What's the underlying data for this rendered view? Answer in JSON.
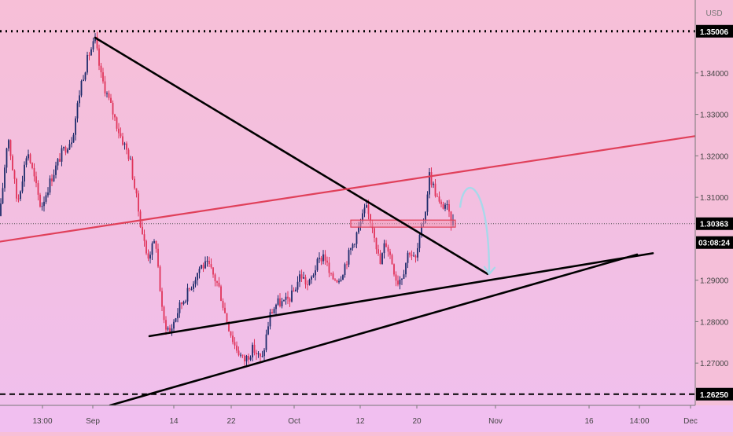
{
  "chart_data": {
    "type": "candlestick",
    "instrument_note": "",
    "currency": "USD",
    "y_range": [
      1.2598,
      1.3576
    ],
    "y_ticks": [
      {
        "value": 1.34,
        "label": "1.34000"
      },
      {
        "value": 1.33,
        "label": "1.33000"
      },
      {
        "value": 1.32,
        "label": "1.32000"
      },
      {
        "value": 1.31,
        "label": "1.31000"
      },
      {
        "value": 1.29,
        "label": "1.29000"
      },
      {
        "value": 1.28,
        "label": "1.28000"
      },
      {
        "value": 1.27,
        "label": "1.27000"
      }
    ],
    "x_ticks": [
      {
        "label": "13:00",
        "bar": 0
      },
      {
        "label": "Sep",
        "bar": 1
      },
      {
        "label": "14",
        "bar": 2
      },
      {
        "label": "22",
        "bar": 3
      },
      {
        "label": "Oct",
        "bar": 4
      },
      {
        "label": "12",
        "bar": 5
      },
      {
        "label": "20",
        "bar": 6
      },
      {
        "label": "Nov",
        "bar": 7
      },
      {
        "label": "16",
        "bar": 8
      },
      {
        "label": "14:00",
        "bar": 9
      },
      {
        "label": "Dec",
        "bar": 10
      }
    ],
    "x_tick_positions": [
      54,
      118,
      221,
      294,
      374,
      458,
      530,
      630,
      749,
      813,
      878
    ],
    "price_labels": {
      "high_line": {
        "value": 1.35006,
        "label": "1.35006"
      },
      "low_line": {
        "value": 1.2625,
        "label": "1.26250"
      },
      "current": {
        "value": 1.30363,
        "label": "1.30363"
      },
      "countdown": "03:08:24"
    },
    "anchors": [
      [
        0,
        1.3055
      ],
      [
        10,
        1.3255
      ],
      [
        22,
        1.3085
      ],
      [
        35,
        1.3215
      ],
      [
        52,
        1.3075
      ],
      [
        65,
        1.3145
      ],
      [
        78,
        1.3205
      ],
      [
        92,
        1.3245
      ],
      [
        103,
        1.3375
      ],
      [
        113,
        1.3445
      ],
      [
        121,
        1.3478
      ],
      [
        128,
        1.3395
      ],
      [
        140,
        1.3325
      ],
      [
        152,
        1.3255
      ],
      [
        165,
        1.3195
      ],
      [
        178,
        1.3045
      ],
      [
        187,
        1.2955
      ],
      [
        198,
        1.2995
      ],
      [
        207,
        1.2805
      ],
      [
        216,
        1.2775
      ],
      [
        228,
        1.2835
      ],
      [
        240,
        1.2875
      ],
      [
        255,
        1.2935
      ],
      [
        265,
        1.2935
      ],
      [
        278,
        1.2885
      ],
      [
        288,
        1.2805
      ],
      [
        298,
        1.2745
      ],
      [
        310,
        1.2705
      ],
      [
        322,
        1.2735
      ],
      [
        333,
        1.2705
      ],
      [
        343,
        1.2815
      ],
      [
        352,
        1.2845
      ],
      [
        362,
        1.2845
      ],
      [
        372,
        1.2865
      ],
      [
        382,
        1.2915
      ],
      [
        392,
        1.2885
      ],
      [
        402,
        1.2935
      ],
      [
        412,
        1.2965
      ],
      [
        420,
        1.2905
      ],
      [
        432,
        1.2905
      ],
      [
        442,
        1.2955
      ],
      [
        450,
        1.2995
      ],
      [
        458,
        1.3035
      ],
      [
        465,
        1.3075
      ],
      [
        475,
        1.3025
      ],
      [
        483,
        1.2935
      ],
      [
        490,
        1.2995
      ],
      [
        497,
        1.2955
      ],
      [
        505,
        1.2895
      ],
      [
        512,
        1.2915
      ],
      [
        520,
        1.2975
      ],
      [
        528,
        1.2945
      ],
      [
        535,
        1.3015
      ],
      [
        540,
        1.3055
      ],
      [
        546,
        1.3155
      ],
      [
        553,
        1.3115
      ],
      [
        560,
        1.3075
      ],
      [
        567,
        1.3085
      ],
      [
        572,
        1.3045
      ],
      [
        578,
        1.3036
      ]
    ],
    "trend_lines": [
      {
        "name": "upper-trendline",
        "color": "#000000",
        "points": [
          [
            121,
            1.3485
          ],
          [
            620,
            1.2915
          ]
        ]
      },
      {
        "name": "support-trendline",
        "color": "#000000",
        "points": [
          [
            190,
            1.2765
          ],
          [
            830,
            1.2965
          ]
        ]
      },
      {
        "name": "lower-trendline",
        "color": "#000000",
        "points": [
          [
            140,
            1.2598
          ],
          [
            810,
            1.2962
          ]
        ]
      },
      {
        "name": "resistance-line",
        "color": "#e0405a",
        "points": [
          [
            0,
            1.2993
          ],
          [
            885,
            1.3248
          ]
        ]
      }
    ],
    "supply_zone": {
      "x_start": 446,
      "x_end": 579,
      "y_high": 1.3045,
      "y_low": 1.3028
    },
    "projection_arrow": {
      "color": "#a8d8ea",
      "from": [
        585,
        1.3075
      ],
      "via": [
        600,
        1.312
      ],
      "to": [
        622,
        1.2915
      ]
    },
    "colors": {
      "up": "#1e2b6b",
      "down": "#e0335a",
      "resistance": "#e0405a",
      "zone_fill": "#f29bb6",
      "zone_stroke": "#e0405a",
      "arrow": "#a8d8ea"
    }
  }
}
